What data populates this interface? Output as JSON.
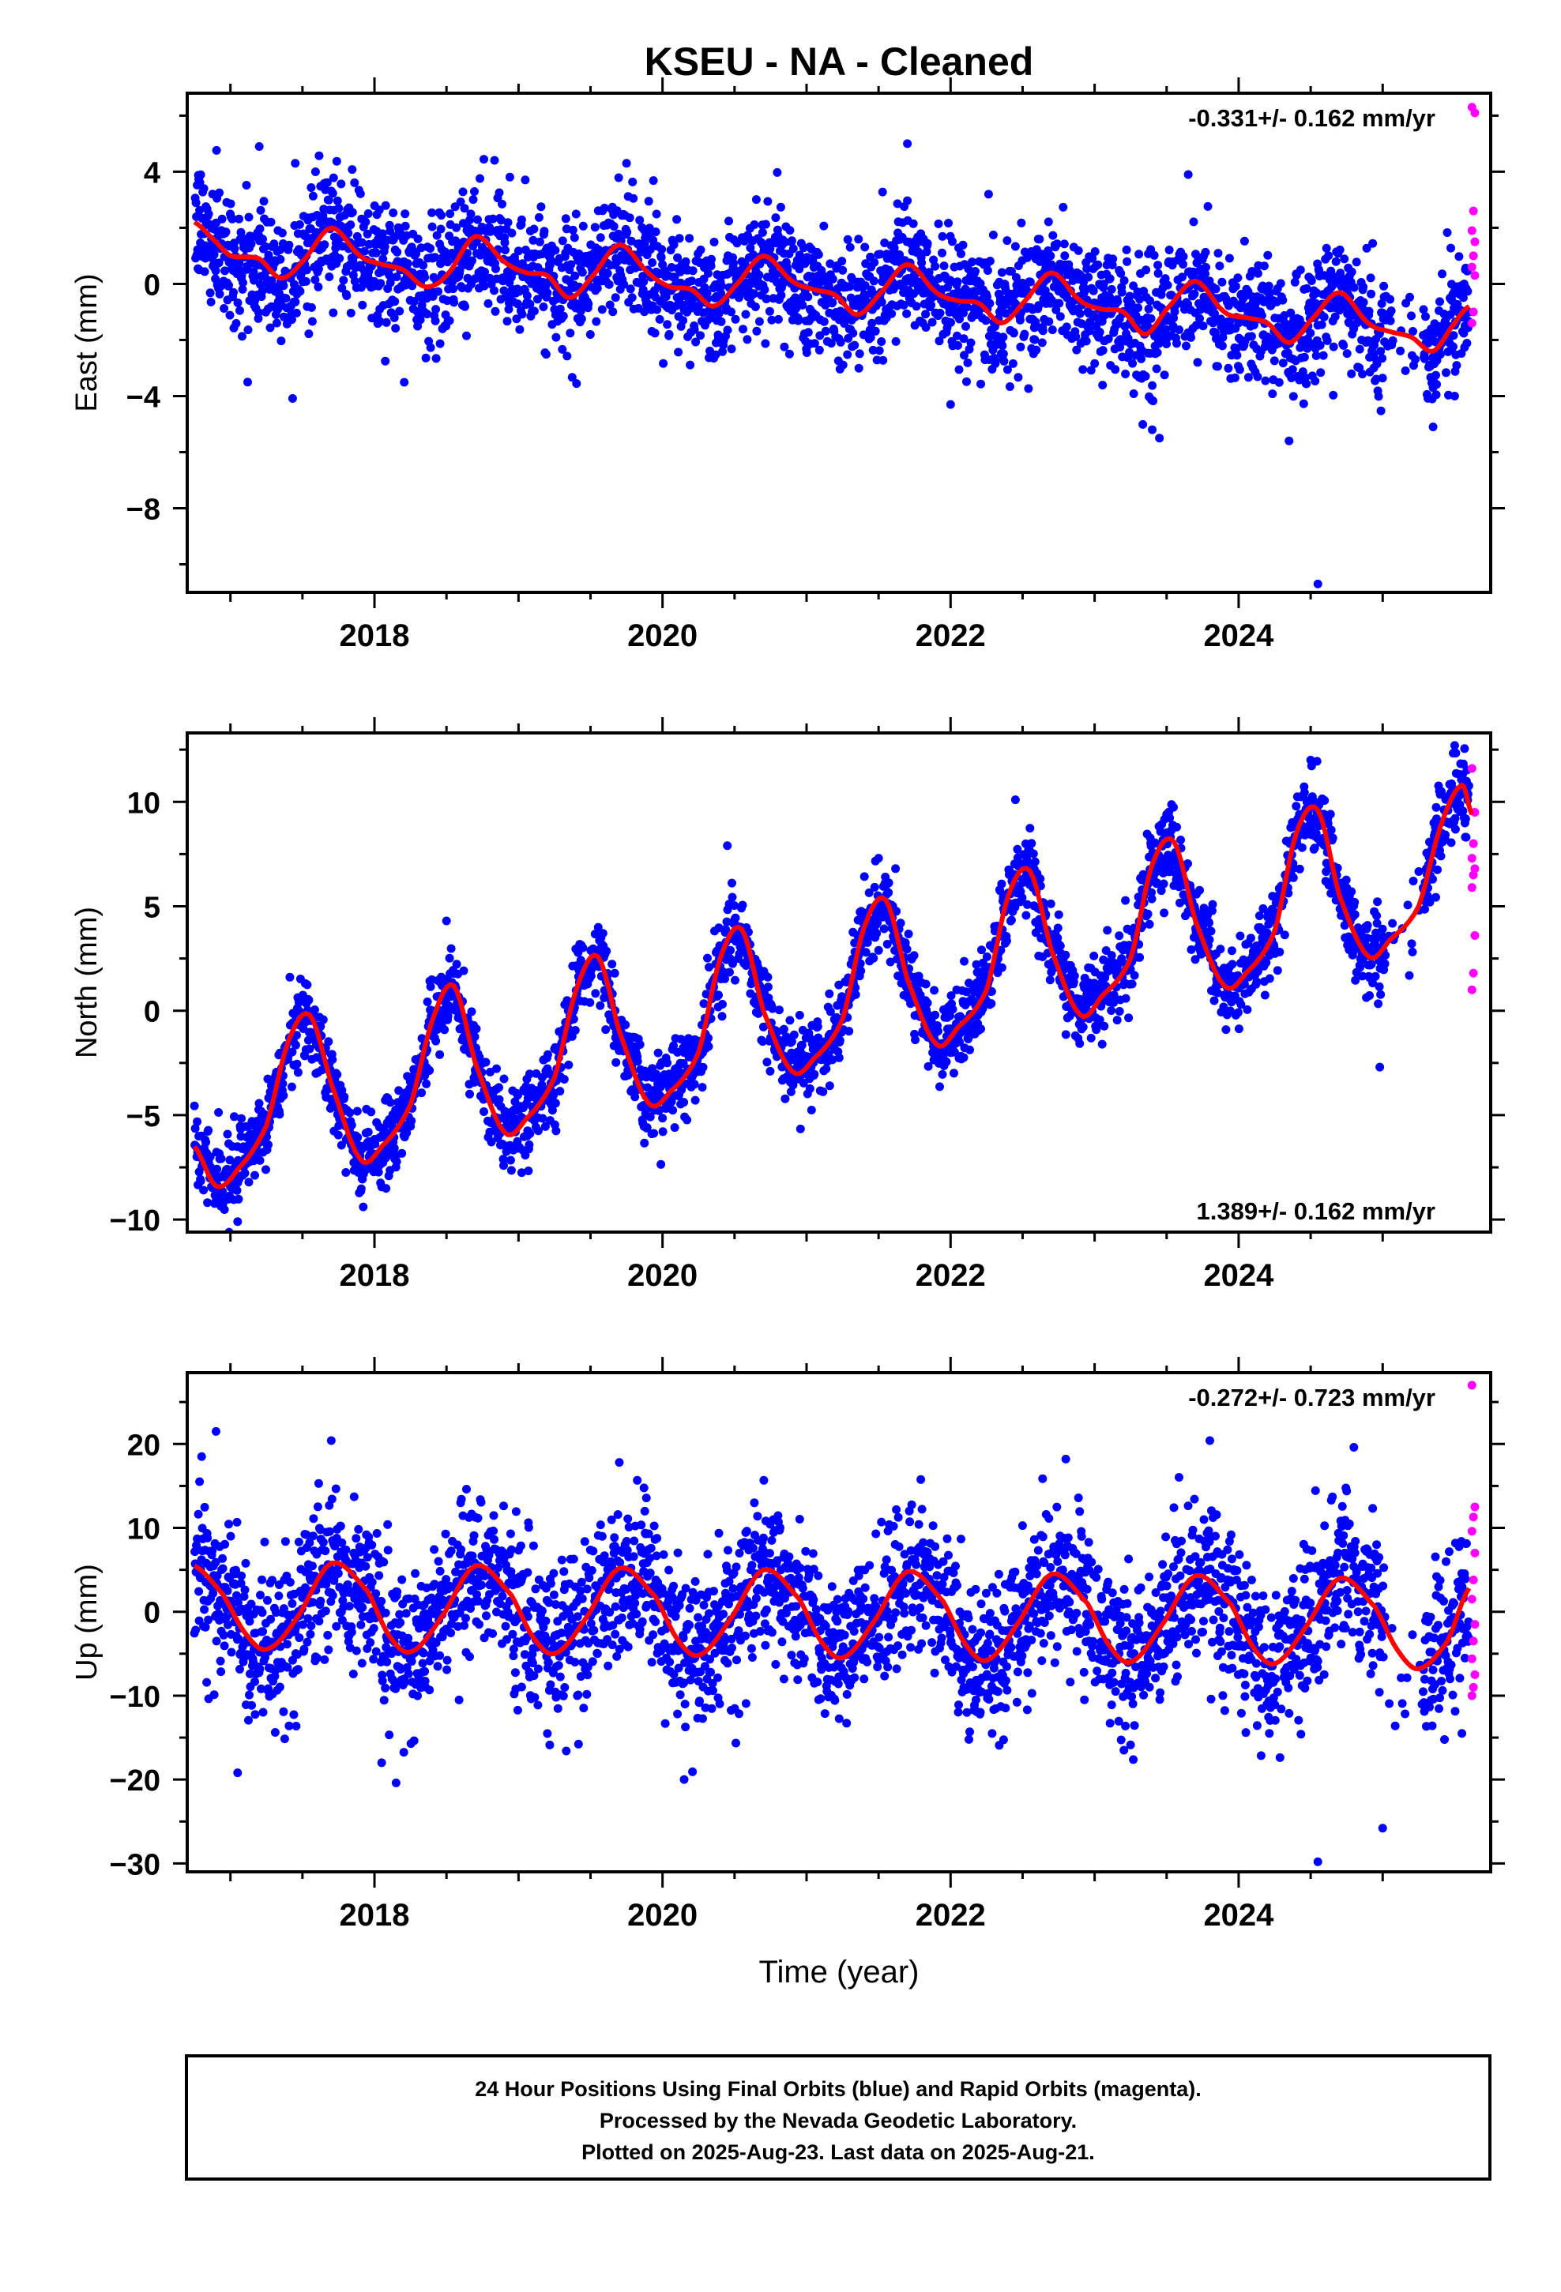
{
  "title": "KSEU  - NA - Cleaned",
  "colors": {
    "final": "#0000ff",
    "rapid": "#ff00ff",
    "model": "#ff0000",
    "axis": "#000000"
  },
  "chart_data": [
    {
      "type": "scatter",
      "ylabel": "East (mm)",
      "xlim": [
        2016.7,
        2025.75
      ],
      "ylim": [
        -11,
        6.8
      ],
      "xticks": [
        2018,
        2020,
        2022,
        2024
      ],
      "yticks": [
        -8,
        -4,
        0,
        4
      ],
      "ytick_labels": [
        "−8",
        "−4",
        "0",
        "4"
      ],
      "rate_text": "-0.331+/- 0.162 mm/yr",
      "rate_position": "top-right",
      "noise_mm": 1.1,
      "model": {
        "series": "Model fit",
        "x": [
          2016.75,
          2016.9,
          2017.0,
          2017.2,
          2017.35,
          2017.5,
          2017.7,
          2017.9,
          2018.05,
          2018.2,
          2018.35,
          2018.5,
          2018.7,
          2018.9,
          2019.05,
          2019.2,
          2019.35,
          2019.5,
          2019.7,
          2019.9,
          2020.05,
          2020.2,
          2020.35,
          2020.5,
          2020.7,
          2020.9,
          2021.05,
          2021.2,
          2021.35,
          2021.5,
          2021.7,
          2021.9,
          2022.05,
          2022.2,
          2022.35,
          2022.5,
          2022.7,
          2022.9,
          2023.05,
          2023.2,
          2023.35,
          2023.5,
          2023.7,
          2023.9,
          2024.05,
          2024.2,
          2024.35,
          2024.5,
          2024.7,
          2024.9,
          2025.05,
          2025.2,
          2025.35,
          2025.5,
          2025.6
        ],
        "y": [
          2.2,
          1.5,
          1.0,
          0.9,
          0.2,
          0.8,
          2.0,
          1.0,
          0.7,
          0.5,
          -0.1,
          0.3,
          1.7,
          0.8,
          0.4,
          0.3,
          -0.5,
          0.2,
          1.4,
          0.4,
          -0.1,
          -0.2,
          -0.8,
          -0.1,
          1.0,
          0.1,
          -0.2,
          -0.4,
          -1.1,
          -0.4,
          0.7,
          -0.3,
          -0.6,
          -0.7,
          -1.4,
          -0.7,
          0.4,
          -0.6,
          -0.9,
          -1.0,
          -1.8,
          -0.9,
          0.1,
          -1.0,
          -1.2,
          -1.4,
          -2.1,
          -1.3,
          -0.3,
          -1.4,
          -1.7,
          -1.9,
          -2.4,
          -1.4,
          -0.8
        ]
      },
      "gaps": [
        [
          2025.02,
          2025.28
        ]
      ],
      "outliers": [
        {
          "x": 2017.2,
          "y": 4.9
        },
        {
          "x": 2017.45,
          "y": 4.3
        },
        {
          "x": 2019.75,
          "y": 4.3
        },
        {
          "x": 2021.7,
          "y": 5.0
        },
        {
          "x": 2022.0,
          "y": -4.3
        },
        {
          "x": 2023.4,
          "y": -5.2
        },
        {
          "x": 2023.45,
          "y": -5.5
        },
        {
          "x": 2023.65,
          "y": 3.9
        },
        {
          "x": 2024.35,
          "y": -5.6
        },
        {
          "x": 2024.55,
          "y": -10.7
        },
        {
          "x": 2025.35,
          "y": -5.1
        },
        {
          "x": 2025.5,
          "y": -4.0
        }
      ],
      "rapid": {
        "x": [
          2025.62,
          2025.64,
          2025.63,
          2025.62,
          2025.64,
          2025.63,
          2025.62,
          2025.64,
          2025.63,
          2025.62
        ],
        "y": [
          6.3,
          6.1,
          2.6,
          1.9,
          1.5,
          1.0,
          0.6,
          0.3,
          -1.0,
          -1.4
        ]
      }
    },
    {
      "type": "scatter",
      "ylabel": "North (mm)",
      "xlim": [
        2016.7,
        2025.75
      ],
      "ylim": [
        -10.6,
        13.3
      ],
      "xticks": [
        2018,
        2020,
        2022,
        2024
      ],
      "yticks": [
        -10,
        -5,
        0,
        5,
        10
      ],
      "ytick_labels": [
        "−10",
        "−5",
        "0",
        "5",
        "10"
      ],
      "rate_text": "1.389+/- 0.162 mm/yr",
      "rate_position": "bottom-right",
      "noise_mm": 0.95,
      "model": {
        "series": "Model fit",
        "x": [
          2016.75,
          2016.9,
          2017.05,
          2017.25,
          2017.4,
          2017.55,
          2017.7,
          2017.9,
          2018.05,
          2018.25,
          2018.4,
          2018.55,
          2018.7,
          2018.9,
          2019.05,
          2019.25,
          2019.4,
          2019.55,
          2019.7,
          2019.9,
          2020.05,
          2020.25,
          2020.4,
          2020.55,
          2020.7,
          2020.9,
          2021.05,
          2021.25,
          2021.4,
          2021.55,
          2021.7,
          2021.9,
          2022.05,
          2022.25,
          2022.4,
          2022.55,
          2022.7,
          2022.9,
          2023.05,
          2023.25,
          2023.4,
          2023.55,
          2023.7,
          2023.9,
          2024.05,
          2024.25,
          2024.4,
          2024.55,
          2024.7,
          2024.9,
          2025.05,
          2025.25,
          2025.4,
          2025.55,
          2025.62
        ],
        "y": [
          -6.5,
          -8.4,
          -7.6,
          -5.5,
          -1.5,
          -0.2,
          -3.5,
          -7.1,
          -6.5,
          -4.5,
          -0.5,
          1.2,
          -2.5,
          -5.8,
          -5.2,
          -3.2,
          1.0,
          2.6,
          -1.0,
          -4.4,
          -3.9,
          -2.0,
          2.5,
          3.9,
          0.0,
          -2.9,
          -2.3,
          -0.4,
          4.0,
          5.3,
          1.5,
          -1.6,
          -0.8,
          1.0,
          5.5,
          6.7,
          2.9,
          -0.2,
          0.7,
          2.5,
          7.0,
          8.1,
          4.3,
          1.2,
          1.8,
          3.8,
          8.5,
          9.6,
          5.5,
          2.6,
          3.4,
          5.0,
          8.8,
          10.8,
          9.4
        ]
      },
      "gaps": [
        [
          2025.02,
          2025.28
        ]
      ],
      "outliers": [
        {
          "x": 2017.05,
          "y": -10.1
        },
        {
          "x": 2018.5,
          "y": 4.3
        },
        {
          "x": 2020.45,
          "y": 7.9
        },
        {
          "x": 2021.5,
          "y": 7.3
        },
        {
          "x": 2022.45,
          "y": 10.1
        },
        {
          "x": 2023.5,
          "y": 9.4
        },
        {
          "x": 2024.5,
          "y": 12.0
        },
        {
          "x": 2024.98,
          "y": -2.7
        },
        {
          "x": 2025.5,
          "y": 12.7
        }
      ],
      "rapid": {
        "x": [
          2025.62,
          2025.64,
          2025.63,
          2025.62,
          2025.64,
          2025.63,
          2025.62,
          2025.64,
          2025.63,
          2025.62
        ],
        "y": [
          11.6,
          9.5,
          8.0,
          7.3,
          6.8,
          6.5,
          5.9,
          3.6,
          1.8,
          1.0
        ]
      }
    },
    {
      "type": "scatter",
      "ylabel": "Up (mm)",
      "xlabel": "Time (year)",
      "xlim": [
        2016.7,
        2025.75
      ],
      "ylim": [
        -31,
        28.5
      ],
      "xticks": [
        2018,
        2020,
        2022,
        2024
      ],
      "yticks": [
        -30,
        -20,
        -10,
        0,
        10,
        20
      ],
      "ytick_labels": [
        "−30",
        "−20",
        "−10",
        "0",
        "10",
        "20"
      ],
      "rate_text": "-0.272+/- 0.723 mm/yr",
      "rate_position": "top-right",
      "noise_mm": 4.6,
      "model": {
        "series": "Model fit",
        "x": [
          2016.75,
          2016.95,
          2017.1,
          2017.25,
          2017.45,
          2017.7,
          2017.95,
          2018.1,
          2018.25,
          2018.45,
          2018.7,
          2018.95,
          2019.1,
          2019.25,
          2019.45,
          2019.7,
          2019.95,
          2020.1,
          2020.25,
          2020.45,
          2020.7,
          2020.95,
          2021.1,
          2021.25,
          2021.45,
          2021.7,
          2021.95,
          2022.1,
          2022.25,
          2022.45,
          2022.7,
          2022.95,
          2023.1,
          2023.25,
          2023.45,
          2023.7,
          2023.95,
          2024.1,
          2024.25,
          2024.45,
          2024.7,
          2024.95,
          2025.1,
          2025.25,
          2025.45,
          2025.6
        ],
        "y": [
          5.5,
          2.0,
          -2.5,
          -4.5,
          -1.0,
          5.8,
          2.5,
          -2.8,
          -4.8,
          -1.0,
          5.5,
          2.0,
          -3.0,
          -5.0,
          -1.2,
          5.2,
          1.8,
          -3.2,
          -5.2,
          -1.4,
          5.0,
          1.5,
          -3.5,
          -5.5,
          -1.6,
          4.8,
          1.2,
          -3.8,
          -5.8,
          -1.8,
          4.5,
          1.0,
          -4.0,
          -6.0,
          -2.0,
          4.3,
          0.8,
          -4.2,
          -6.2,
          -2.2,
          4.0,
          0.5,
          -4.5,
          -6.8,
          -3.5,
          2.8
        ]
      },
      "gaps": [
        [
          2025.02,
          2025.28
        ]
      ],
      "outliers": [
        {
          "x": 2016.8,
          "y": 18.5
        },
        {
          "x": 2016.9,
          "y": 21.5
        },
        {
          "x": 2017.05,
          "y": -19.2
        },
        {
          "x": 2017.7,
          "y": 20.4
        },
        {
          "x": 2018.05,
          "y": -18.0
        },
        {
          "x": 2018.15,
          "y": -20.4
        },
        {
          "x": 2019.7,
          "y": 17.8
        },
        {
          "x": 2020.15,
          "y": -20.0
        },
        {
          "x": 2022.8,
          "y": 18.2
        },
        {
          "x": 2023.8,
          "y": 20.4
        },
        {
          "x": 2024.05,
          "y": -14.4
        },
        {
          "x": 2024.55,
          "y": -29.8
        },
        {
          "x": 2024.8,
          "y": 19.6
        },
        {
          "x": 2025.0,
          "y": -25.8
        },
        {
          "x": 2025.55,
          "y": -14.5
        }
      ],
      "rapid": {
        "x": [
          2025.62,
          2025.64,
          2025.63,
          2025.62,
          2025.64,
          2025.63,
          2025.62,
          2025.64,
          2025.63,
          2025.62,
          2025.64,
          2025.63,
          2025.62
        ],
        "y": [
          27.0,
          12.5,
          11.3,
          9.6,
          7.0,
          3.8,
          1.5,
          -1.5,
          -3.5,
          -5.6,
          -7.5,
          -9.0,
          -10.0
        ]
      }
    }
  ],
  "footer": {
    "line1": "24 Hour Positions Using Final Orbits (blue) and Rapid Orbits (magenta).",
    "line2": "Processed by the Nevada Geodetic Laboratory.",
    "line3": "Plotted on 2025-Aug-23. Last data on 2025-Aug-21."
  }
}
